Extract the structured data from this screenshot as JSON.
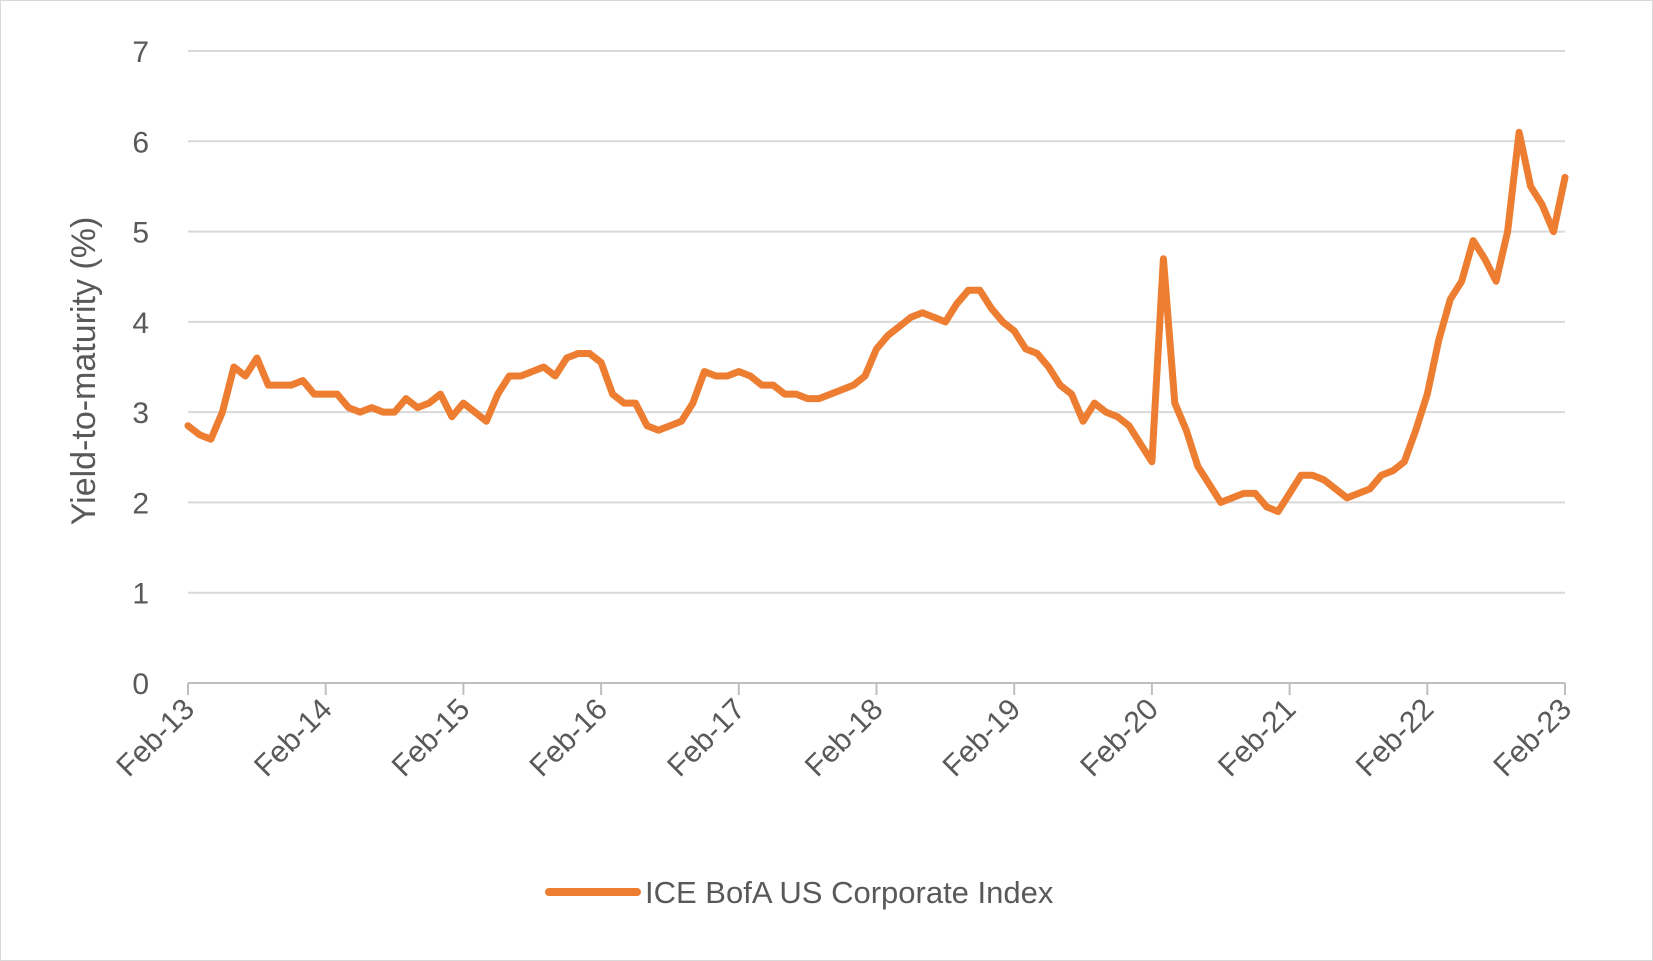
{
  "chart_data": {
    "type": "line",
    "title": "",
    "xlabel": "",
    "ylabel": "Yield-to-maturity (%)",
    "ylim": [
      0,
      7
    ],
    "yticks": [
      0,
      1,
      2,
      3,
      4,
      5,
      6,
      7
    ],
    "xlim": [
      "2013-02",
      "2023-02"
    ],
    "xticks": [
      "Feb-13",
      "Feb-14",
      "Feb-15",
      "Feb-16",
      "Feb-17",
      "Feb-18",
      "Feb-19",
      "Feb-20",
      "Feb-21",
      "Feb-22",
      "Feb-23"
    ],
    "grid": "horizontal",
    "legend_position": "bottom",
    "colors": {
      "line": "#ED7D31",
      "grid": "#d9d9d9",
      "axis": "#bfbfbf",
      "text": "#595959"
    },
    "series": [
      {
        "name": "ICE BofA US Corporate Index",
        "x": [
          "2013-02",
          "2013-03",
          "2013-04",
          "2013-05",
          "2013-06",
          "2013-07",
          "2013-08",
          "2013-09",
          "2013-10",
          "2013-11",
          "2013-12",
          "2014-01",
          "2014-02",
          "2014-03",
          "2014-04",
          "2014-05",
          "2014-06",
          "2014-07",
          "2014-08",
          "2014-09",
          "2014-10",
          "2014-11",
          "2014-12",
          "2015-01",
          "2015-02",
          "2015-03",
          "2015-04",
          "2015-05",
          "2015-06",
          "2015-07",
          "2015-08",
          "2015-09",
          "2015-10",
          "2015-11",
          "2015-12",
          "2016-01",
          "2016-02",
          "2016-03",
          "2016-04",
          "2016-05",
          "2016-06",
          "2016-07",
          "2016-08",
          "2016-09",
          "2016-10",
          "2016-11",
          "2016-12",
          "2017-01",
          "2017-02",
          "2017-03",
          "2017-04",
          "2017-05",
          "2017-06",
          "2017-07",
          "2017-08",
          "2017-09",
          "2017-10",
          "2017-11",
          "2017-12",
          "2018-01",
          "2018-02",
          "2018-03",
          "2018-04",
          "2018-05",
          "2018-06",
          "2018-07",
          "2018-08",
          "2018-09",
          "2018-10",
          "2018-11",
          "2018-12",
          "2019-01",
          "2019-02",
          "2019-03",
          "2019-04",
          "2019-05",
          "2019-06",
          "2019-07",
          "2019-08",
          "2019-09",
          "2019-10",
          "2019-11",
          "2019-12",
          "2020-01",
          "2020-02",
          "2020-03",
          "2020-04",
          "2020-05",
          "2020-06",
          "2020-07",
          "2020-08",
          "2020-09",
          "2020-10",
          "2020-11",
          "2020-12",
          "2021-01",
          "2021-02",
          "2021-03",
          "2021-04",
          "2021-05",
          "2021-06",
          "2021-07",
          "2021-08",
          "2021-09",
          "2021-10",
          "2021-11",
          "2021-12",
          "2022-01",
          "2022-02",
          "2022-03",
          "2022-04",
          "2022-05",
          "2022-06",
          "2022-07",
          "2022-08",
          "2022-09",
          "2022-10",
          "2022-11",
          "2022-12",
          "2023-01",
          "2023-02"
        ],
        "values": [
          2.85,
          2.75,
          2.7,
          3.0,
          3.5,
          3.4,
          3.6,
          3.3,
          3.3,
          3.3,
          3.35,
          3.2,
          3.2,
          3.2,
          3.05,
          3.0,
          3.05,
          3.0,
          3.0,
          3.15,
          3.05,
          3.1,
          3.2,
          2.95,
          3.1,
          3.0,
          2.9,
          3.2,
          3.4,
          3.4,
          3.45,
          3.5,
          3.4,
          3.6,
          3.65,
          3.65,
          3.55,
          3.2,
          3.1,
          3.1,
          2.85,
          2.8,
          2.85,
          2.9,
          3.1,
          3.45,
          3.4,
          3.4,
          3.45,
          3.4,
          3.3,
          3.3,
          3.2,
          3.2,
          3.15,
          3.15,
          3.2,
          3.25,
          3.3,
          3.4,
          3.7,
          3.85,
          3.95,
          4.05,
          4.1,
          4.05,
          4.0,
          4.2,
          4.35,
          4.35,
          4.15,
          4.0,
          3.9,
          3.7,
          3.65,
          3.5,
          3.3,
          3.2,
          2.9,
          3.1,
          3.0,
          2.95,
          2.85,
          2.65,
          2.45,
          4.7,
          3.1,
          2.8,
          2.4,
          2.2,
          2.0,
          2.05,
          2.1,
          2.1,
          1.95,
          1.9,
          2.1,
          2.3,
          2.3,
          2.25,
          2.15,
          2.05,
          2.1,
          2.15,
          2.3,
          2.35,
          2.45,
          2.8,
          3.2,
          3.8,
          4.25,
          4.45,
          4.9,
          4.7,
          4.45,
          5.0,
          6.1,
          5.5,
          5.3,
          5.0,
          5.6
        ]
      }
    ]
  }
}
